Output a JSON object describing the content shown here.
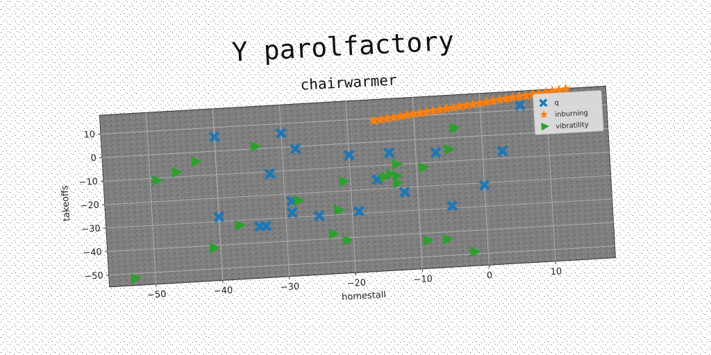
{
  "chart_data": {
    "type": "scatter",
    "title": "Y parolfactory",
    "subtitle": "chairwarmer",
    "xlabel": "homestall",
    "ylabel": "takeoffs",
    "xlim": [
      -57,
      19
    ],
    "ylim": [
      -55,
      18
    ],
    "xticks": [
      -50,
      -40,
      -30,
      -20,
      -10,
      0,
      10
    ],
    "yticks": [
      -50,
      -40,
      -30,
      -20,
      -10,
      0,
      10
    ],
    "grid": true,
    "legend": "top-right",
    "background_color": "#808080",
    "series": [
      {
        "name": "q",
        "color": "#1f77b4",
        "marker": "x-filled",
        "points": [
          [
            -40,
            6
          ],
          [
            -30,
            6
          ],
          [
            -28,
            -1
          ],
          [
            -32,
            -11
          ],
          [
            -20,
            -5
          ],
          [
            -14,
            -5
          ],
          [
            -7,
            -6
          ],
          [
            3,
            -7
          ],
          [
            6,
            12
          ],
          [
            -16,
            -16
          ],
          [
            -12,
            -22
          ],
          [
            0,
            -21
          ],
          [
            -29,
            -23
          ],
          [
            -29,
            -28
          ],
          [
            -40,
            -28
          ],
          [
            -34,
            -33
          ],
          [
            -33,
            -33
          ],
          [
            -25,
            -30
          ],
          [
            -19,
            -29
          ],
          [
            -5,
            -29
          ]
        ]
      },
      {
        "name": "inburning",
        "color": "#ff7f0e",
        "marker": "star",
        "points": [
          [
            -16,
            9
          ],
          [
            -15,
            9.3
          ],
          [
            -14,
            9.6
          ],
          [
            -13,
            9.9
          ],
          [
            -12,
            10.2
          ],
          [
            -11,
            10.5
          ],
          [
            -10,
            10.8
          ],
          [
            -9,
            11.1
          ],
          [
            -8,
            11.4
          ],
          [
            -7,
            11.7
          ],
          [
            -6,
            12
          ],
          [
            -5,
            12.3
          ],
          [
            -4,
            12.6
          ],
          [
            -3,
            12.9
          ],
          [
            -2,
            13.2
          ],
          [
            -1,
            13.5
          ],
          [
            0,
            13.8
          ],
          [
            1,
            14.1
          ],
          [
            2,
            14.4
          ],
          [
            3,
            14.7
          ],
          [
            4,
            15
          ],
          [
            5,
            15.3
          ],
          [
            6,
            15.6
          ],
          [
            7,
            15.9
          ],
          [
            8,
            16.2
          ],
          [
            9,
            16.5
          ],
          [
            10,
            16.8
          ],
          [
            11,
            17.1
          ],
          [
            12,
            17.4
          ],
          [
            13,
            17.7
          ]
        ]
      },
      {
        "name": "vibratility",
        "color": "#2ca02c",
        "marker": "triangle-right",
        "points": [
          [
            -34,
            1
          ],
          [
            -43,
            -4
          ],
          [
            -46,
            -8
          ],
          [
            -49,
            -11
          ],
          [
            -4,
            4
          ],
          [
            -5,
            -5
          ],
          [
            -13,
            -10
          ],
          [
            -9,
            -12
          ],
          [
            -14,
            -14
          ],
          [
            -13,
            -15
          ],
          [
            -15,
            -15
          ],
          [
            -21,
            -16
          ],
          [
            -13,
            -18
          ],
          [
            -28,
            -23
          ],
          [
            -22,
            -28
          ],
          [
            -37,
            -32
          ],
          [
            -23,
            -38
          ],
          [
            -21,
            -41
          ],
          [
            -41,
            -41
          ],
          [
            -9,
            -43
          ],
          [
            -6,
            -43
          ],
          [
            -2,
            -49
          ],
          [
            -53,
            -52
          ]
        ]
      }
    ]
  }
}
